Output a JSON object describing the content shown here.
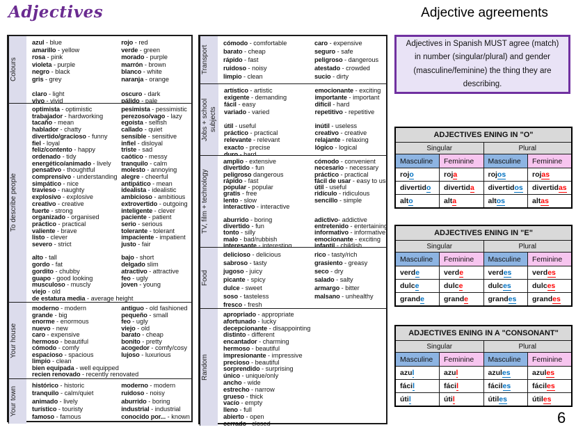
{
  "page": {
    "left_title": "Adjectives",
    "right_title": "Adjective agreements",
    "info_box": "Adjectives in Spanish MUST agree (match) in number (singular/plural) and gender (masculine/feminine) the thing they are describing.",
    "page_number": "6"
  },
  "vocab_left": {
    "sections": [
      {
        "label": "Colours",
        "col1": [
          [
            "azul",
            "blue"
          ],
          [
            "amarillo",
            "yellow"
          ],
          [
            "rosa",
            "pink"
          ],
          [
            "violeta",
            "purple"
          ],
          [
            "negro",
            "black"
          ],
          [
            "gris",
            "grey"
          ],
          [],
          [
            "claro",
            "light"
          ],
          [
            "vivo",
            "vivid"
          ]
        ],
        "col2": [
          [
            "rojo",
            "red"
          ],
          [
            "verde",
            "green"
          ],
          [
            "morado",
            "purple"
          ],
          [
            "marrón",
            "brown"
          ],
          [
            "blanco",
            "white"
          ],
          [
            "naranja",
            "orange"
          ],
          [],
          [
            "oscuro",
            "dark"
          ],
          [
            "pálido",
            "pale"
          ]
        ]
      },
      {
        "label": "To describe people",
        "col1": [
          [
            "optimista",
            "optimistic"
          ],
          [
            "trabajador",
            "hardworking"
          ],
          [
            "tacaño",
            "mean"
          ],
          [
            "hablador",
            "chatty"
          ],
          [
            "divertido/gracioso",
            "funny"
          ],
          [
            "fiel",
            "loyal"
          ],
          [
            "feliz/contento",
            "happy"
          ],
          [
            "ordenado",
            "tidy"
          ],
          [
            "energético/animado",
            "lively"
          ],
          [
            "pensativo",
            "thoughtful"
          ],
          [
            "comprensivo",
            "understanding"
          ],
          [
            "simpático",
            "nice"
          ],
          [
            "travieso",
            "naughty"
          ],
          [
            "explosivo",
            "explosive"
          ],
          [
            "creativo",
            "creative"
          ],
          [
            "fuerte",
            "strong"
          ],
          [
            "organizado",
            "organised"
          ],
          [
            "práctico",
            "practical"
          ],
          [
            "valiente",
            "brave"
          ],
          [
            "listo",
            "clever"
          ],
          [
            "severo",
            "strict"
          ],
          [],
          [
            "alto",
            "tall"
          ],
          [
            "gordo",
            "fat"
          ],
          [
            "gordito",
            "chubby"
          ],
          [
            "guapo",
            "good looking"
          ],
          [
            "musculoso",
            "muscly"
          ],
          [
            "viejo",
            "old"
          ],
          [
            "de estatura media",
            "average height"
          ]
        ],
        "col2": [
          [
            "pesimista",
            "pessimistic"
          ],
          [
            "perezoso/vago",
            "lazy"
          ],
          [
            "egoísta",
            "selfish"
          ],
          [
            "callado",
            "quiet"
          ],
          [
            "sensible",
            "sensitive"
          ],
          [
            "infiel",
            "disloyal"
          ],
          [
            "triste",
            "sad"
          ],
          [
            "caótico",
            "messy"
          ],
          [
            "tranquilo",
            "calm"
          ],
          [
            "molesto",
            "annoying"
          ],
          [
            "alegre",
            "cheerful"
          ],
          [
            "antipático",
            "mean"
          ],
          [
            "idealista",
            "idealistic"
          ],
          [
            "ambicioso",
            "ambitious"
          ],
          [
            "extrovertido",
            "outgoing"
          ],
          [
            "inteligente",
            "clever"
          ],
          [
            "paciente",
            "patient"
          ],
          [
            "serio",
            "serious"
          ],
          [
            "tolerante",
            "tolerant"
          ],
          [
            "impaciente",
            "impatient"
          ],
          [
            "justo",
            "fair"
          ],
          [],
          [
            "bajo",
            "short"
          ],
          [
            "delgado",
            "slim",
            " "
          ],
          [
            "atractivo",
            "attractive"
          ],
          [
            "feo",
            "ugly"
          ],
          [
            "joven",
            "young"
          ]
        ]
      },
      {
        "label": "Your house",
        "col1": [
          [
            "moderno",
            "modern"
          ],
          [
            "grande",
            "big"
          ],
          [
            "enorme",
            "enormous"
          ],
          [
            "nuevo",
            "new"
          ],
          [
            "caro",
            "expensive"
          ],
          [
            "hermoso",
            "beautiful"
          ],
          [
            "cómodo",
            "comfy"
          ],
          [
            "espacioso",
            "spacious"
          ],
          [
            "limpio",
            "clean"
          ],
          [
            "bien equipada",
            "well equipped"
          ],
          [
            "recien renovado",
            "recently renovated"
          ]
        ],
        "col2": [
          [
            "antiguo",
            "old fashioned"
          ],
          [
            "pequeño",
            "small"
          ],
          [
            "feo",
            "ugly"
          ],
          [
            "viejo",
            "old"
          ],
          [
            "barato",
            "cheap"
          ],
          [
            "bonito",
            "pretty"
          ],
          [
            "acogedor",
            "comfy/cosy"
          ],
          [
            "lujoso",
            "luxurious"
          ]
        ]
      },
      {
        "label": "Your town",
        "col1": [
          [
            "histórico",
            "historic"
          ],
          [
            "tranquilo",
            "calm/quiet"
          ],
          [
            "animado",
            "lively"
          ],
          [
            "turístico",
            "touristy"
          ],
          [
            "famoso",
            "famous"
          ]
        ],
        "col2": [
          [
            "moderno",
            "modern"
          ],
          [
            "ruidoso",
            "noisy"
          ],
          [
            "aburrido",
            "boring"
          ],
          [
            "industrial",
            "industrial"
          ],
          [
            "conocido por...",
            "known for..."
          ]
        ]
      }
    ]
  },
  "vocab_middle": {
    "sections": [
      {
        "label": "Transport",
        "col1": [
          [
            "cómodo",
            "comfortable"
          ],
          [
            "barato",
            "cheap"
          ],
          [
            "rápido",
            "fast"
          ],
          [
            "ruidoso",
            "noisy"
          ],
          [
            "limpio",
            "clean"
          ]
        ],
        "col2": [
          [
            "caro",
            "expensive"
          ],
          [
            "seguro",
            "safe"
          ],
          [
            "peligroso",
            "dangerous"
          ],
          [
            "atestado",
            "crowded"
          ],
          [
            "sucio",
            "dirty"
          ]
        ]
      },
      {
        "label": "Jobs + school subjects",
        "col1": [
          [
            "artístico",
            "artistic"
          ],
          [
            "exigente",
            "demanding"
          ],
          [
            "fácil",
            "easy"
          ],
          [
            "variado",
            "varied"
          ],
          [],
          [
            "útil",
            "useful"
          ],
          [
            "práctico",
            "practical"
          ],
          [
            "relevante",
            "relevant"
          ],
          [
            "exacto",
            "precise"
          ],
          [
            "duro",
            "hard"
          ]
        ],
        "col2": [
          [
            "emocionante",
            "exciting"
          ],
          [
            "importante",
            "important"
          ],
          [
            "difícil",
            "hard"
          ],
          [
            "repetitivo",
            "repetitive"
          ],
          [],
          [
            "inútil",
            "useless"
          ],
          [
            "creativo",
            "creative"
          ],
          [
            "relajante",
            "relaxing"
          ],
          [
            "lógico",
            "logical"
          ]
        ]
      },
      {
        "label": "TV, film + technology",
        "col1": [
          [
            "amplio",
            "extensive"
          ],
          [
            "divertido",
            "fun"
          ],
          [
            "peligroso",
            "dangerous",
            " "
          ],
          [
            "rápido",
            "fast"
          ],
          [
            "popular",
            "popular"
          ],
          [
            "gratis",
            "free"
          ],
          [
            "lento",
            "slow"
          ],
          [
            "interactivo",
            "interactive"
          ],
          [],
          [
            "aburrido",
            "boring"
          ],
          [
            "divertido",
            "fun"
          ],
          [
            "tonto",
            "silly"
          ],
          [
            "malo",
            "bad/rubbish"
          ],
          [
            "interesante",
            "interesting"
          ]
        ],
        "col2": [
          [
            "cómodo",
            "convenient"
          ],
          [
            "necesario",
            "necessary"
          ],
          [
            "práctico",
            "practical"
          ],
          [
            "fácil de usar",
            "easy to use"
          ],
          [
            "útil",
            "useful"
          ],
          [
            "ridículo",
            "ridiculous"
          ],
          [
            "sencillo",
            "simple"
          ],
          [],
          [],
          [
            "adictivo",
            "addictive",
            "- "
          ],
          [
            "entretenido",
            "entertaining"
          ],
          [
            "informativo",
            "informative"
          ],
          [
            "emocionante",
            "exciting"
          ],
          [
            "infantil",
            "childish"
          ]
        ]
      },
      {
        "label": "Food",
        "col1": [
          [
            "delicioso",
            "delicious"
          ],
          [
            "sabroso",
            "tasty"
          ],
          [
            "jugoso",
            "juicy"
          ],
          [
            "picante",
            "spicy"
          ],
          [
            "dulce",
            "sweet"
          ],
          [
            "soso",
            "tasteless"
          ],
          [
            "fresco",
            "fresh"
          ]
        ],
        "col2": [
          [
            "rico",
            "tasty/rich"
          ],
          [
            "grasiento",
            "greasy"
          ],
          [
            "seco",
            "dry"
          ],
          [
            "salado",
            "salty"
          ],
          [
            "armargo",
            "bitter"
          ],
          [
            "malsano",
            "unhealthy"
          ]
        ]
      },
      {
        "label": "Random",
        "col1": [
          [
            "apropriado",
            "appropriate"
          ],
          [
            "afortunado",
            "lucky"
          ],
          [
            "decepcionante",
            "disappointing"
          ],
          [
            "distinto",
            "different"
          ],
          [
            "encantador",
            "charming"
          ],
          [
            "hermoso",
            "beautiful"
          ],
          [
            "impresionante",
            "impressive"
          ],
          [
            "precioso",
            "beautiful"
          ],
          [
            "sorprendido",
            "surprising"
          ],
          [
            "único",
            "unique/only"
          ],
          [
            "ancho",
            "wide"
          ],
          [
            "estrecho",
            "narrow"
          ],
          [
            "grueso",
            "thick"
          ],
          [
            "vacío",
            "empty"
          ],
          [
            "lleno",
            "full"
          ],
          [
            "abierto",
            "open"
          ],
          [
            "cerrado",
            "closed"
          ]
        ],
        "col2": []
      }
    ]
  },
  "agreement_tables": [
    {
      "title": "ADJECTIVES ENING IN \"O\"",
      "groups": [
        "Singular",
        "Plural"
      ],
      "cols": [
        "Masculine",
        "Feminine",
        "Masculine",
        "Feminine"
      ],
      "rows": [
        [
          [
            "roj",
            "o"
          ],
          [
            "roj",
            "a"
          ],
          [
            "roj",
            "os"
          ],
          [
            "roj",
            "as"
          ]
        ],
        [
          [
            "divertid",
            "o"
          ],
          [
            "divertid",
            "a"
          ],
          [
            "divertid",
            "os"
          ],
          [
            "divertid",
            "as"
          ]
        ],
        [
          [
            "alt",
            "o"
          ],
          [
            "alt",
            "a"
          ],
          [
            "alt",
            "os"
          ],
          [
            "alt",
            "as"
          ]
        ]
      ]
    },
    {
      "title": "ADJECTIVES ENING IN \"E\"",
      "groups": [
        "Singular",
        "Plural"
      ],
      "cols": [
        "Masculine",
        "Feminine",
        "Masculine",
        "Feminine"
      ],
      "rows": [
        [
          [
            "verd",
            "e"
          ],
          [
            "verd",
            "e"
          ],
          [
            "verd",
            "es"
          ],
          [
            "verd",
            "es"
          ]
        ],
        [
          [
            "dulc",
            "e"
          ],
          [
            "dulc",
            "e"
          ],
          [
            "dulc",
            "es"
          ],
          [
            "dulc",
            "es"
          ]
        ],
        [
          [
            "grand",
            "e"
          ],
          [
            "grand",
            "e"
          ],
          [
            "grand",
            "es"
          ],
          [
            "grand",
            "es"
          ]
        ]
      ]
    },
    {
      "title": "ADJECTIVES ENING IN A \"CONSONANT\"",
      "groups": [
        "Singular",
        "Plural"
      ],
      "cols": [
        "Masculine",
        "Feminine",
        "Masculine",
        "Feminine"
      ],
      "rows": [
        [
          [
            "azu",
            "l"
          ],
          [
            "azu",
            "l"
          ],
          [
            "azul",
            "es"
          ],
          [
            "azul",
            "es"
          ]
        ],
        [
          [
            "fáci",
            "l"
          ],
          [
            "fáci",
            "l"
          ],
          [
            "fácil",
            "es"
          ],
          [
            "fácil",
            "es"
          ]
        ],
        [
          [
            "úti",
            "l"
          ],
          [
            "úti",
            "l"
          ],
          [
            "útil",
            "es"
          ],
          [
            "útil",
            "es"
          ]
        ]
      ]
    }
  ]
}
